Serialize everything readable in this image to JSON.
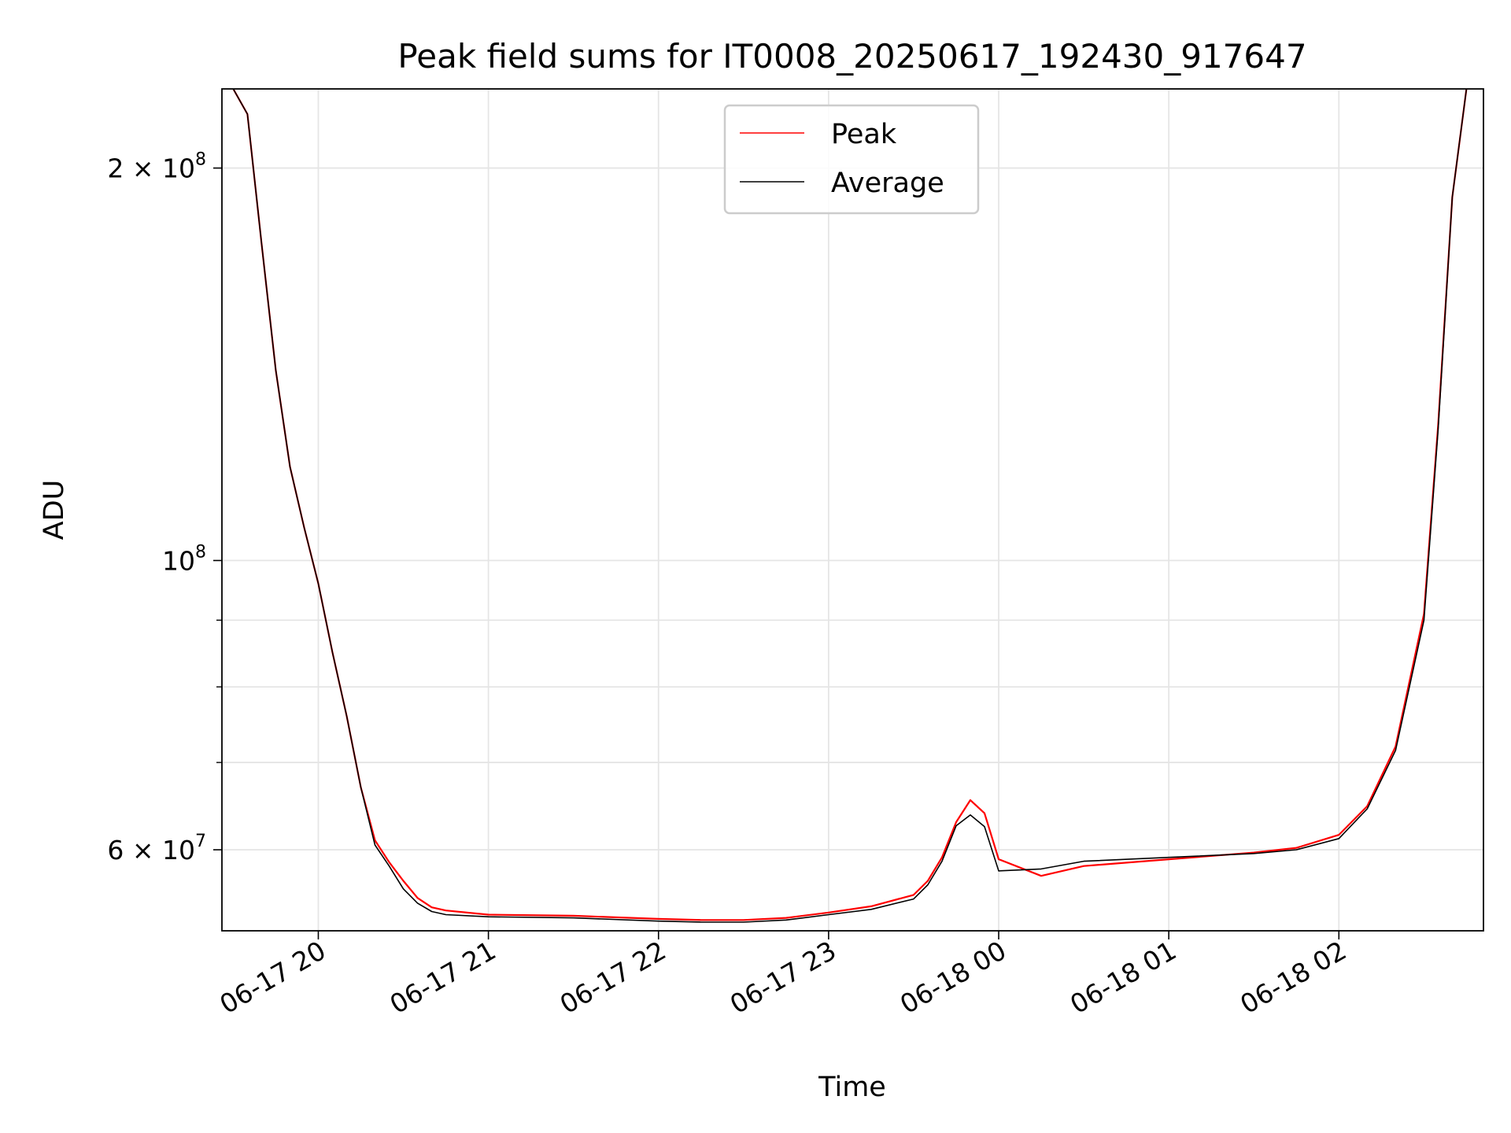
{
  "chart_data": {
    "type": "line",
    "title": "Peak field sums for IT0008_20250617_192430_917647",
    "xlabel": "Time",
    "ylabel": "ADU",
    "yscale": "log",
    "grid": true,
    "legend_position": "upper center",
    "xlim": [
      "2025-06-17 19:26",
      "2025-06-18 02:51"
    ],
    "ylim": [
      52000000,
      230000000
    ],
    "x_ticks": [
      {
        "t": "2025-06-17 20:00",
        "label": "06-17 20"
      },
      {
        "t": "2025-06-17 21:00",
        "label": "06-17 21"
      },
      {
        "t": "2025-06-17 22:00",
        "label": "06-17 22"
      },
      {
        "t": "2025-06-17 23:00",
        "label": "06-17 23"
      },
      {
        "t": "2025-06-18 00:00",
        "label": "06-18 00"
      },
      {
        "t": "2025-06-18 01:00",
        "label": "06-18 01"
      },
      {
        "t": "2025-06-18 02:00",
        "label": "06-18 02"
      }
    ],
    "y_ticks_major": [
      {
        "v": 200000000,
        "base": "2",
        "exp": "8",
        "label": "2 × 10^8"
      },
      {
        "v": 100000000,
        "base": "",
        "exp": "8",
        "label": "10^8"
      },
      {
        "v": 60000000,
        "base": "6",
        "exp": "7",
        "label": "6 × 10^7"
      }
    ],
    "y_ticks_minor": [
      70000000,
      80000000,
      90000000
    ],
    "series": [
      {
        "name": "Peak",
        "color": "#ff0000",
        "x": [
          "2025-06-17 19:30",
          "2025-06-17 19:35",
          "2025-06-17 19:40",
          "2025-06-17 19:45",
          "2025-06-17 19:50",
          "2025-06-17 19:55",
          "2025-06-17 20:00",
          "2025-06-17 20:05",
          "2025-06-17 20:10",
          "2025-06-17 20:15",
          "2025-06-17 20:20",
          "2025-06-17 20:25",
          "2025-06-17 20:30",
          "2025-06-17 20:35",
          "2025-06-17 20:40",
          "2025-06-17 20:45",
          "2025-06-17 21:00",
          "2025-06-17 21:30",
          "2025-06-17 22:00",
          "2025-06-17 22:15",
          "2025-06-17 22:30",
          "2025-06-17 22:45",
          "2025-06-17 23:00",
          "2025-06-17 23:15",
          "2025-06-17 23:30",
          "2025-06-17 23:35",
          "2025-06-17 23:40",
          "2025-06-17 23:45",
          "2025-06-17 23:50",
          "2025-06-17 23:55",
          "2025-06-18 00:00",
          "2025-06-18 00:15",
          "2025-06-18 00:30",
          "2025-06-18 01:00",
          "2025-06-18 01:30",
          "2025-06-18 01:45",
          "2025-06-18 02:00",
          "2025-06-18 02:10",
          "2025-06-18 02:20",
          "2025-06-18 02:30",
          "2025-06-18 02:35",
          "2025-06-18 02:40",
          "2025-06-18 02:45"
        ],
        "values": [
          230000000,
          220000000,
          175000000,
          140000000,
          118000000,
          106000000,
          96000000,
          85000000,
          76000000,
          67000000,
          61000000,
          58700000,
          56800000,
          55100000,
          54200000,
          53900000,
          53500000,
          53400000,
          53100000,
          53000000,
          53000000,
          53200000,
          53700000,
          54300000,
          55400000,
          56800000,
          59200000,
          63000000,
          65500000,
          64000000,
          59000000,
          57300000,
          58300000,
          59000000,
          59700000,
          60200000,
          61600000,
          64800000,
          72000000,
          91000000,
          127000000,
          190000000,
          230000000
        ]
      },
      {
        "name": "Average",
        "color": "#000000",
        "x": [
          "2025-06-17 19:30",
          "2025-06-17 19:35",
          "2025-06-17 19:40",
          "2025-06-17 19:45",
          "2025-06-17 19:50",
          "2025-06-17 19:55",
          "2025-06-17 20:00",
          "2025-06-17 20:05",
          "2025-06-17 20:10",
          "2025-06-17 20:15",
          "2025-06-17 20:20",
          "2025-06-17 20:25",
          "2025-06-17 20:30",
          "2025-06-17 20:35",
          "2025-06-17 20:40",
          "2025-06-17 20:45",
          "2025-06-17 21:00",
          "2025-06-17 21:30",
          "2025-06-17 22:00",
          "2025-06-17 22:15",
          "2025-06-17 22:30",
          "2025-06-17 22:45",
          "2025-06-17 23:00",
          "2025-06-17 23:15",
          "2025-06-17 23:30",
          "2025-06-17 23:35",
          "2025-06-17 23:40",
          "2025-06-17 23:45",
          "2025-06-17 23:50",
          "2025-06-17 23:55",
          "2025-06-18 00:00",
          "2025-06-18 00:15",
          "2025-06-18 00:30",
          "2025-06-18 01:00",
          "2025-06-18 01:30",
          "2025-06-18 01:45",
          "2025-06-18 02:00",
          "2025-06-18 02:10",
          "2025-06-18 02:20",
          "2025-06-18 02:30",
          "2025-06-18 02:35",
          "2025-06-18 02:40",
          "2025-06-18 02:45"
        ],
        "values": [
          230000000,
          220000000,
          175000000,
          140000000,
          118000000,
          106000000,
          96000000,
          85000000,
          76000000,
          67000000,
          60500000,
          58300000,
          56000000,
          54600000,
          53800000,
          53500000,
          53300000,
          53200000,
          52900000,
          52800000,
          52800000,
          53000000,
          53500000,
          54000000,
          55000000,
          56400000,
          58800000,
          62600000,
          63800000,
          62500000,
          57800000,
          58000000,
          58800000,
          59200000,
          59600000,
          60000000,
          61200000,
          64500000,
          71500000,
          90000000,
          126000000,
          190000000,
          230000000
        ]
      }
    ]
  }
}
